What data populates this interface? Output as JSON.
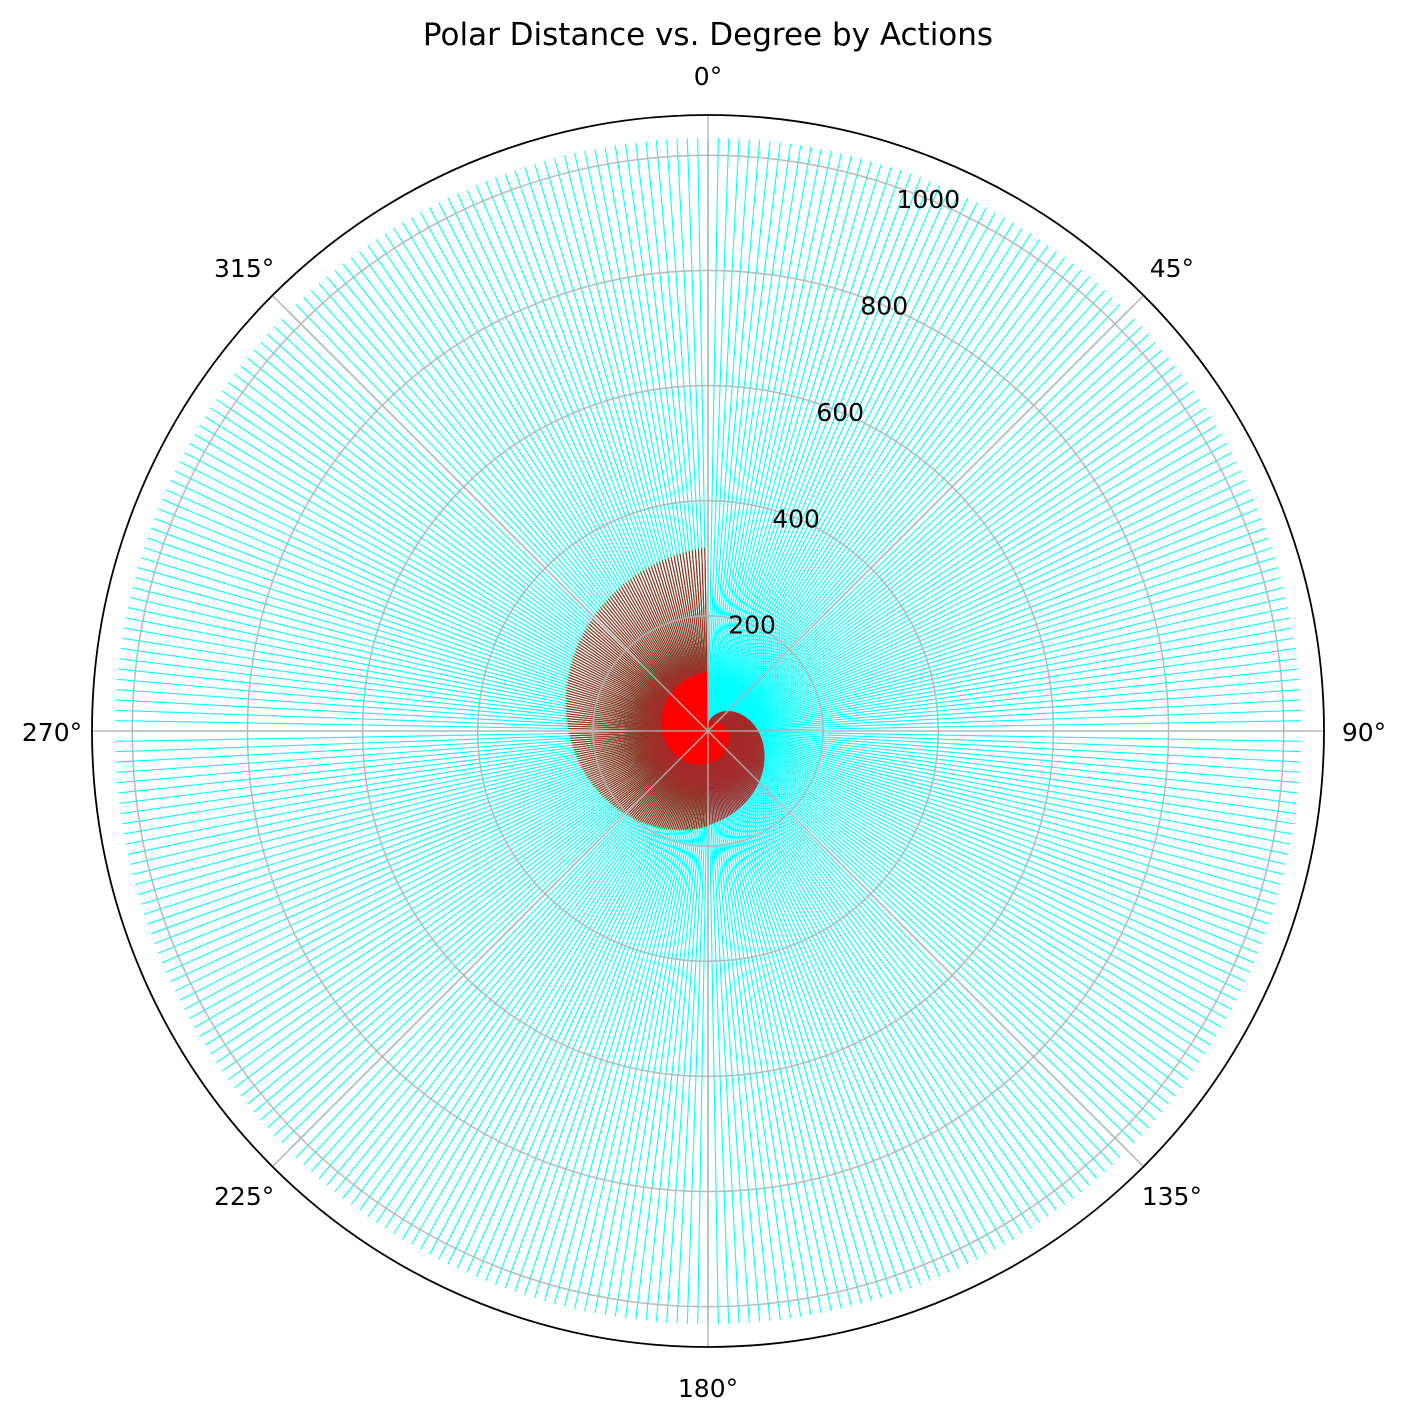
{
  "chart_data": {
    "type": "polar",
    "title": "Polar Distance vs. Degree by Actions",
    "theta_direction": "clockwise",
    "theta_zero": "top",
    "theta_ticks": [
      0,
      45,
      90,
      135,
      180,
      225,
      270,
      315
    ],
    "theta_tick_labels": [
      "0°",
      "45°",
      "90°",
      "135°",
      "180°",
      "225°",
      "270°",
      "315°"
    ],
    "r_ticks": [
      200,
      400,
      600,
      800,
      1000
    ],
    "r_tick_labels": [
      "200",
      "400",
      "600",
      "800",
      "1000"
    ],
    "rlim": [
      0,
      1070
    ],
    "r_label_angle_deg": 22.5,
    "grid": true,
    "series": [
      {
        "color": "#00ffff",
        "theta_start": 0,
        "theta_end": 360,
        "theta_step": 1,
        "r_value": 1030
      },
      {
        "color": "#00aa00",
        "theta_start": 180,
        "theta_end": 360,
        "theta_step": 1,
        "r_start": 166,
        "r_end": 320
      },
      {
        "color": "#a52a2a",
        "theta_start": 0,
        "theta_end": 360,
        "theta_step": 1,
        "r_start": 10,
        "r_end": 318
      },
      {
        "color": "#ff0000",
        "theta_start": 0,
        "theta_end": 360,
        "theta_step": 1,
        "r_start": 10,
        "r_end": 103
      }
    ]
  }
}
